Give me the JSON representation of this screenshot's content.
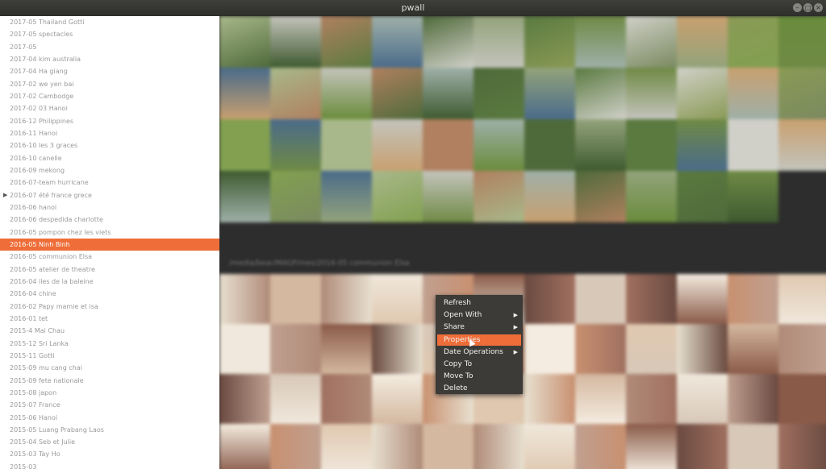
{
  "window": {
    "title": "pwall",
    "minimize_label": "–",
    "maximize_label": "□",
    "close_label": "×"
  },
  "sidebar": {
    "items": [
      {
        "label": "2017-05 Thailand Gotti"
      },
      {
        "label": "2017-05 spectacles"
      },
      {
        "label": "2017-05"
      },
      {
        "label": "2017-04 kim australia"
      },
      {
        "label": "2017-04 Ha giang"
      },
      {
        "label": "2017-02 we yen bai"
      },
      {
        "label": "2017-02 Cambodge"
      },
      {
        "label": "2017-02 03 Hanoi"
      },
      {
        "label": "2016-12 Philippines"
      },
      {
        "label": "2016-11 Hanoi"
      },
      {
        "label": "2016-10 les 3 graces"
      },
      {
        "label": "2016-10 canelle"
      },
      {
        "label": "2016-09 mekong"
      },
      {
        "label": "2016-07-team hurricane"
      },
      {
        "label": "2016-07 été france grece",
        "expandable": true
      },
      {
        "label": "2016-06 hanoi"
      },
      {
        "label": "2016-06 despedida charlotte"
      },
      {
        "label": "2016-05 pompon chez les viets"
      },
      {
        "label": "2016-05 Ninh Binh",
        "selected": true
      },
      {
        "label": "2016-05 communion Elsa"
      },
      {
        "label": "2016-05 atelier de theatre"
      },
      {
        "label": "2016-04 iles de la baleine"
      },
      {
        "label": "2016-04 chine"
      },
      {
        "label": "2016-02 Papy mamie et isa"
      },
      {
        "label": "2016-01 tet"
      },
      {
        "label": "2015-4 Mai Chau"
      },
      {
        "label": "2015-12 Sri Lanka"
      },
      {
        "label": "2015-11 Gotti"
      },
      {
        "label": "2015-09 mu cang chai"
      },
      {
        "label": "2015-09 fete nationale"
      },
      {
        "label": "2015-08 japon"
      },
      {
        "label": "2015-07 France"
      },
      {
        "label": "2015-06 Hanoi"
      },
      {
        "label": "2015-05 Luang Prabang Laos"
      },
      {
        "label": "2015-04 Seb et Julie"
      },
      {
        "label": "2015-03 Tay Ho"
      },
      {
        "label": "2015-03"
      }
    ]
  },
  "gallery": {
    "section_header": "/media/bear/MAGP/mes/2016-05 communion Elsa"
  },
  "context_menu": {
    "items": [
      {
        "label": "Refresh",
        "submenu": false
      },
      {
        "label": "Open With",
        "submenu": true
      },
      {
        "label": "Share",
        "submenu": true
      },
      {
        "label": "Properties",
        "submenu": false,
        "active": true
      },
      {
        "label": "Date Operations",
        "submenu": true
      },
      {
        "label": "Copy To",
        "submenu": false
      },
      {
        "label": "Move To",
        "submenu": false
      },
      {
        "label": "Delete",
        "submenu": false
      }
    ]
  },
  "colors": {
    "accent": "#ee6d38",
    "menu_bg": "#3c3b37",
    "titlebar": "#3a3a36"
  }
}
